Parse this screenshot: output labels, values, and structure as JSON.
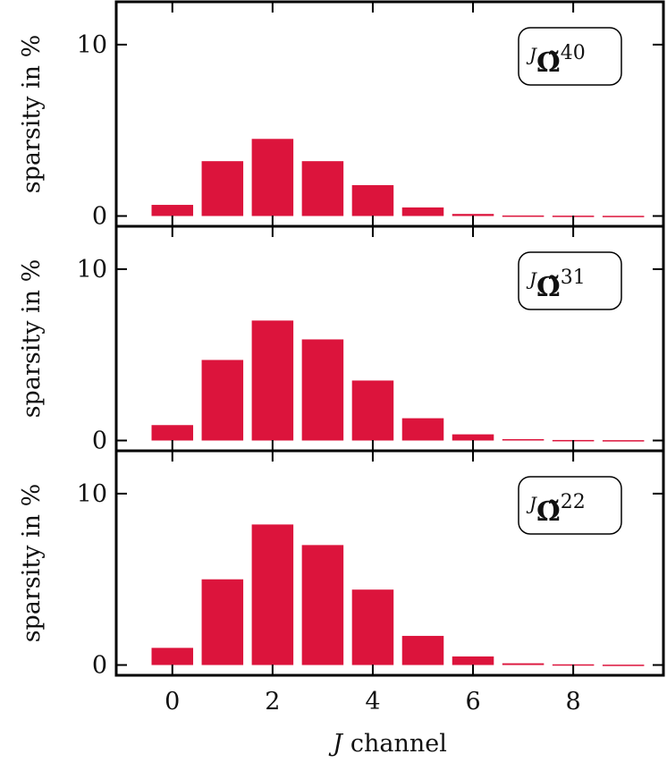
{
  "chart_data": [
    {
      "type": "bar",
      "ylabel": "sparsity in %",
      "annotation": [
        "J",
        "Ω̃",
        "40"
      ],
      "x": [
        0,
        1,
        2,
        3,
        4,
        5,
        6,
        7,
        8,
        9
      ],
      "values": [
        0.65,
        3.2,
        4.5,
        3.2,
        1.8,
        0.5,
        0.12,
        0.03,
        0.02,
        0.01
      ],
      "color": "#dc143c",
      "xlim": [
        -1.12,
        9.8
      ],
      "ylim": [
        -0.6,
        12.5
      ],
      "yticks": [
        0,
        10
      ]
    },
    {
      "type": "bar",
      "ylabel": "sparsity in %",
      "annotation": [
        "J",
        "Ω̃",
        "31"
      ],
      "x": [
        0,
        1,
        2,
        3,
        4,
        5,
        6,
        7,
        8,
        9
      ],
      "values": [
        0.9,
        4.7,
        7.0,
        5.9,
        3.5,
        1.3,
        0.36,
        0.08,
        0.03,
        0.02
      ],
      "color": "#dc143c",
      "xlim": [
        -1.12,
        9.8
      ],
      "ylim": [
        -0.6,
        12.5
      ],
      "yticks": [
        0,
        10
      ]
    },
    {
      "type": "bar",
      "ylabel": "sparsity in %",
      "annotation": [
        "J",
        "Ω̃",
        "22"
      ],
      "x": [
        0,
        1,
        2,
        3,
        4,
        5,
        6,
        7,
        8,
        9
      ],
      "values": [
        1.0,
        5.0,
        8.2,
        7.0,
        4.4,
        1.7,
        0.5,
        0.1,
        0.04,
        0.02
      ],
      "color": "#dc143c",
      "xlim": [
        -1.12,
        9.8
      ],
      "ylim": [
        -0.6,
        12.5
      ],
      "yticks": [
        0,
        10
      ],
      "xticks": [
        0,
        2,
        4,
        6,
        8
      ],
      "xlabel": [
        "J",
        "channel"
      ]
    }
  ]
}
